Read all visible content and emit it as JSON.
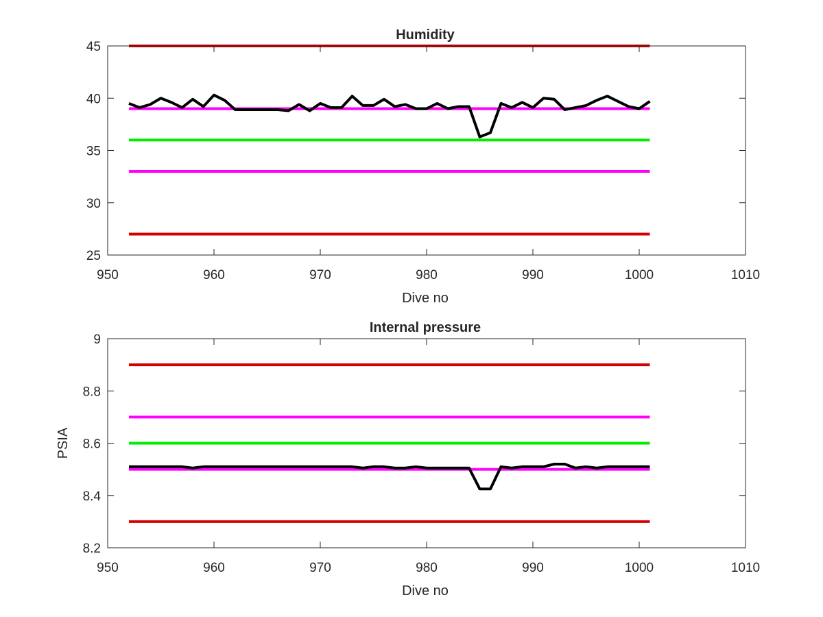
{
  "chart_data": [
    {
      "type": "line",
      "title": "Humidity",
      "xlabel": "Dive no",
      "ylabel": "",
      "xlim": [
        950,
        1010
      ],
      "ylim": [
        25,
        45
      ],
      "xticks": [
        "950",
        "960",
        "970",
        "980",
        "990",
        "1000",
        "1010"
      ],
      "yticks": [
        "25",
        "30",
        "35",
        "40",
        "45"
      ],
      "grid": false,
      "x": [
        952,
        953,
        954,
        955,
        956,
        957,
        958,
        959,
        960,
        961,
        962,
        963,
        964,
        965,
        966,
        967,
        968,
        969,
        970,
        971,
        972,
        973,
        974,
        975,
        976,
        977,
        978,
        979,
        980,
        981,
        982,
        983,
        984,
        985,
        986,
        987,
        988,
        989,
        990,
        991,
        992,
        993,
        994,
        995,
        996,
        997,
        998,
        999,
        1000,
        1001
      ],
      "series": [
        {
          "color": "#000000",
          "values": [
            39.5,
            39.1,
            39.4,
            40.0,
            39.6,
            39.1,
            39.9,
            39.2,
            40.3,
            39.8,
            38.9,
            38.9,
            38.9,
            38.9,
            38.9,
            38.8,
            39.4,
            38.8,
            39.5,
            39.1,
            39.1,
            40.2,
            39.3,
            39.3,
            39.9,
            39.2,
            39.4,
            39.0,
            39.0,
            39.5,
            39.0,
            39.2,
            39.2,
            36.3,
            36.7,
            39.5,
            39.1,
            39.6,
            39.1,
            40.0,
            39.9,
            38.9,
            39.1,
            39.3,
            39.8,
            40.2,
            39.7,
            39.2,
            39.0,
            39.7
          ]
        }
      ],
      "reference_lines": [
        {
          "value": 45,
          "color": "#d40000"
        },
        {
          "value": 39,
          "color": "#ff00ff"
        },
        {
          "value": 36,
          "color": "#00ee00"
        },
        {
          "value": 33,
          "color": "#ff00ff"
        },
        {
          "value": 27,
          "color": "#d40000"
        }
      ],
      "reference_x_range": [
        952,
        1001
      ]
    },
    {
      "type": "line",
      "title": "Internal pressure",
      "xlabel": "Dive no",
      "ylabel": "PSIA",
      "xlim": [
        950,
        1010
      ],
      "ylim": [
        8.2,
        9
      ],
      "xticks": [
        "950",
        "960",
        "970",
        "980",
        "990",
        "1000",
        "1010"
      ],
      "yticks": [
        "8.2",
        "8.4",
        "8.6",
        "8.8",
        "9"
      ],
      "grid": false,
      "x": [
        952,
        953,
        954,
        955,
        956,
        957,
        958,
        959,
        960,
        961,
        962,
        963,
        964,
        965,
        966,
        967,
        968,
        969,
        970,
        971,
        972,
        973,
        974,
        975,
        976,
        977,
        978,
        979,
        980,
        981,
        982,
        983,
        984,
        985,
        986,
        987,
        988,
        989,
        990,
        991,
        992,
        993,
        994,
        995,
        996,
        997,
        998,
        999,
        1000,
        1001
      ],
      "series": [
        {
          "color": "#000000",
          "values": [
            8.51,
            8.51,
            8.51,
            8.51,
            8.51,
            8.51,
            8.505,
            8.51,
            8.51,
            8.51,
            8.51,
            8.51,
            8.51,
            8.51,
            8.51,
            8.51,
            8.51,
            8.51,
            8.51,
            8.51,
            8.51,
            8.51,
            8.505,
            8.51,
            8.51,
            8.505,
            8.505,
            8.51,
            8.505,
            8.505,
            8.505,
            8.505,
            8.505,
            8.425,
            8.425,
            8.51,
            8.505,
            8.51,
            8.51,
            8.51,
            8.52,
            8.52,
            8.505,
            8.51,
            8.505,
            8.51,
            8.51,
            8.51,
            8.51,
            8.51
          ]
        }
      ],
      "reference_lines": [
        {
          "value": 8.9,
          "color": "#d40000"
        },
        {
          "value": 8.7,
          "color": "#ff00ff"
        },
        {
          "value": 8.6,
          "color": "#00ee00"
        },
        {
          "value": 8.5,
          "color": "#ff00ff"
        },
        {
          "value": 8.3,
          "color": "#d40000"
        }
      ],
      "reference_x_range": [
        952,
        1001
      ]
    }
  ]
}
